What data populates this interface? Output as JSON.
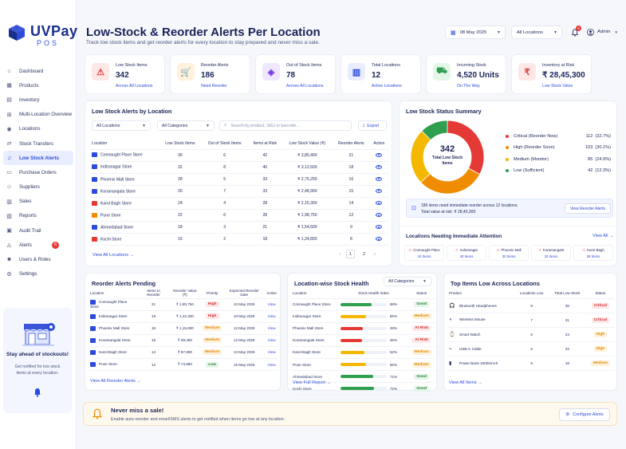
{
  "brand": {
    "name": "UVPay",
    "sub": "POS"
  },
  "nav": [
    {
      "label": "Dashboard",
      "icon": "dashboard-icon",
      "glyph": "⌂"
    },
    {
      "label": "Products",
      "icon": "products-icon",
      "glyph": "▦"
    },
    {
      "label": "Inventory",
      "icon": "inventory-icon",
      "glyph": "▤"
    },
    {
      "label": "Multi-Location Overview",
      "icon": "multi-location-icon",
      "glyph": "⊞"
    },
    {
      "label": "Locations",
      "icon": "location-pin-icon",
      "glyph": "◉"
    },
    {
      "label": "Stock Transfers",
      "icon": "transfer-icon",
      "glyph": "⇄"
    },
    {
      "label": "Low Stock Alerts",
      "icon": "bell-icon",
      "glyph": "♫"
    },
    {
      "label": "Purchase Orders",
      "icon": "purchase-orders-icon",
      "glyph": "▭"
    },
    {
      "label": "Suppliers",
      "icon": "suppliers-icon",
      "glyph": "☺"
    },
    {
      "label": "Sales",
      "icon": "sales-icon",
      "glyph": "▥"
    },
    {
      "label": "Reports",
      "icon": "reports-icon",
      "glyph": "▧"
    },
    {
      "label": "Audit Trail",
      "icon": "audit-icon",
      "glyph": "▣"
    },
    {
      "label": "Alerts",
      "icon": "alert-icon",
      "glyph": "◬",
      "badge": "6"
    },
    {
      "label": "Users & Roles",
      "icon": "users-icon",
      "glyph": "☻"
    },
    {
      "label": "Settings",
      "icon": "settings-icon",
      "glyph": "⚙"
    }
  ],
  "promo": {
    "title": "Stay ahead of stockouts!",
    "text": "Get notified for low stock items at every location."
  },
  "header": {
    "title": "Low-Stock & Reorder Alerts Per Location",
    "subtitle": "Track low stock items and get reorder alerts for every location to stay prepared and never miss a sale.",
    "date": "08 May 2025",
    "location": "All Locations",
    "notif_count": "6",
    "user": "Admin"
  },
  "stats": [
    {
      "label": "Low Stock Items",
      "value": "342",
      "sub": "Across All Locations",
      "color": "#e53935",
      "bg": "#fde7e7",
      "glyph": "⚠"
    },
    {
      "label": "Reorder Alerts",
      "value": "186",
      "sub": "Need Reorder",
      "color": "#f08c00",
      "bg": "#fff1db",
      "glyph": "🛒"
    },
    {
      "label": "Out of Stock Items",
      "value": "78",
      "sub": "Across All Locations",
      "color": "#7b3fe4",
      "bg": "#efe7ff",
      "glyph": "◈"
    },
    {
      "label": "Total Locations",
      "value": "12",
      "sub": "Active Locations",
      "color": "#2c4bdb",
      "bg": "#e8eeff",
      "glyph": "▥"
    },
    {
      "label": "Incoming Stock",
      "value": "4,520 Units",
      "sub": "On The Way",
      "color": "#2e9e4f",
      "bg": "#e3f6e8",
      "glyph": "⛟"
    },
    {
      "label": "Inventory at Risk",
      "value": "₹ 28,45,300",
      "sub": "Low Stock Value",
      "color": "#e53935",
      "bg": "#fde7e7",
      "glyph": "₹"
    }
  ],
  "low_stock": {
    "title": "Low Stock Alerts by Location",
    "filter_location": "All Locations",
    "filter_category": "All Categories",
    "search_placeholder": "Search by product, SKU or barcode...",
    "export": "Export",
    "columns": [
      "Location",
      "Low Stock Items",
      "Out of Stock Items",
      "Items at Risk",
      "Low Stock Value (₹)",
      "Reorder Alerts",
      "Action"
    ],
    "rows": [
      {
        "loc": "Connaught Place Store",
        "low": "36",
        "out": "6",
        "risk": "42",
        "value": "₹ 3,85,400",
        "reorder": "21",
        "color": "#2c4bdb"
      },
      {
        "loc": "Indiranagar Store",
        "low": "32",
        "out": "8",
        "risk": "40",
        "value": "₹ 3,12,600",
        "reorder": "18",
        "color": "#2c4bdb"
      },
      {
        "loc": "Phoenix Mall Store",
        "low": "28",
        "out": "5",
        "risk": "33",
        "value": "₹ 2,75,250",
        "reorder": "16",
        "color": "#2c4bdb"
      },
      {
        "loc": "Koramangala Store",
        "low": "26",
        "out": "7",
        "risk": "33",
        "value": "₹ 2,48,900",
        "reorder": "15",
        "color": "#2c4bdb"
      },
      {
        "loc": "Karol Bagh Store",
        "low": "24",
        "out": "4",
        "risk": "28",
        "value": "₹ 2,15,300",
        "reorder": "14",
        "color": "#e53935"
      },
      {
        "loc": "Pune Store",
        "low": "22",
        "out": "6",
        "risk": "28",
        "value": "₹ 1,98,750",
        "reorder": "12",
        "color": "#f08c00"
      },
      {
        "loc": "Ahmedabad Store",
        "low": "18",
        "out": "3",
        "risk": "21",
        "value": "₹ 1,54,600",
        "reorder": "9",
        "color": "#2c4bdb"
      },
      {
        "loc": "Kochi Store",
        "low": "16",
        "out": "2",
        "risk": "18",
        "value": "₹ 1,24,800",
        "reorder": "8",
        "color": "#e53935"
      }
    ],
    "view_all": "View All Locations",
    "pages": [
      "1",
      "2"
    ]
  },
  "summary": {
    "title": "Low Stock Status Summary",
    "total": "342",
    "total_label": "Total Low Stock Items",
    "legend": [
      {
        "label": "Critical (Reorder Now)",
        "count": "112",
        "pct": "(32.7%)",
        "color": "#e53935"
      },
      {
        "label": "High (Reorder Soon)",
        "count": "103",
        "pct": "(30.1%)",
        "color": "#f08c00"
      },
      {
        "label": "Medium (Monitor)",
        "count": "85",
        "pct": "(24.9%)",
        "color": "#f5b800"
      },
      {
        "label": "Low (Sufficient)",
        "count": "42",
        "pct": "(12.3%)",
        "color": "#2e9e4f"
      }
    ],
    "notice": "186 items need immediate reorder across 12 locations.",
    "notice_value": "Total value at risk: ₹ 28,45,300",
    "notice_btn": "View Reorder Alerts"
  },
  "chart_data": {
    "type": "pie",
    "categories": [
      "Critical (Reorder Now)",
      "High (Reorder Soon)",
      "Medium (Monitor)",
      "Low (Sufficient)"
    ],
    "values": [
      112,
      103,
      85,
      42
    ],
    "title": "Low Stock Status Summary",
    "colors": [
      "#e53935",
      "#f08c00",
      "#f5b800",
      "#2e9e4f"
    ],
    "legend": "right"
  },
  "attention": {
    "title": "Locations Needing Immediate Attention",
    "view_all": "View All",
    "items": [
      {
        "name": "Connaught Place",
        "count": "42 Items"
      },
      {
        "name": "Indiranagar",
        "count": "40 Items"
      },
      {
        "name": "Phoenix Mall",
        "count": "33 Items"
      },
      {
        "name": "Koramangala",
        "count": "33 Items"
      },
      {
        "name": "Karol Bagh",
        "count": "28 Items"
      }
    ]
  },
  "reorder": {
    "title": "Reorder Alerts Pending",
    "columns": [
      "Location",
      "Items to Reorder",
      "Reorder Value (₹)",
      "Priority",
      "Expected Reorder Date",
      "Action"
    ],
    "rows": [
      {
        "loc": "Connaught Place Store",
        "items": "21",
        "value": "₹ 1,85,750",
        "priority": "High",
        "pcls": "pill-high",
        "date": "10 May 2025",
        "action": "View"
      },
      {
        "loc": "Indiranagar Store",
        "items": "18",
        "value": "₹ 1,42,300",
        "priority": "High",
        "pcls": "pill-high",
        "date": "10 May 2025",
        "action": "View"
      },
      {
        "loc": "Phoenix Mall Store",
        "items": "16",
        "value": "₹ 1,15,600",
        "priority": "Medium",
        "pcls": "pill-med",
        "date": "12 May 2025",
        "action": "View"
      },
      {
        "loc": "Koramangala Store",
        "items": "15",
        "value": "₹ 98,450",
        "priority": "Medium",
        "pcls": "pill-med",
        "date": "12 May 2025",
        "action": "View"
      },
      {
        "loc": "Karol Bagh Store",
        "items": "14",
        "value": "₹ 87,900",
        "priority": "Medium",
        "pcls": "pill-med",
        "date": "13 May 2025",
        "action": "View"
      },
      {
        "loc": "Pune Store",
        "items": "12",
        "value": "₹ 74,850",
        "priority": "Low",
        "pcls": "pill-low",
        "date": "15 May 2025",
        "action": "View"
      }
    ],
    "view_all": "View All Reorder Alerts"
  },
  "health": {
    "title": "Location-wise Stock Health",
    "filter": "All Categories",
    "columns": [
      "Location",
      "Stock Health Index",
      "Status"
    ],
    "rows": [
      {
        "loc": "Connaught Place Store",
        "pct": "68%",
        "fill": 0.68,
        "color": "#2e9e4f",
        "status": "Good",
        "scls": "pill-good"
      },
      {
        "loc": "Indiranagar Store",
        "pct": "56%",
        "fill": 0.56,
        "color": "#f5b800",
        "status": "Medium",
        "scls": "pill-med"
      },
      {
        "loc": "Phoenix Mall Store",
        "pct": "48%",
        "fill": 0.48,
        "color": "#e53935",
        "status": "At Risk",
        "scls": "pill-risk"
      },
      {
        "loc": "Koramangala Store",
        "pct": "46%",
        "fill": 0.46,
        "color": "#e53935",
        "status": "At Risk",
        "scls": "pill-risk"
      },
      {
        "loc": "Karol Bagh Store",
        "pct": "52%",
        "fill": 0.52,
        "color": "#f5b800",
        "status": "Medium",
        "scls": "pill-med"
      },
      {
        "loc": "Pune Store",
        "pct": "56%",
        "fill": 0.56,
        "color": "#f5b800",
        "status": "Medium",
        "scls": "pill-med"
      },
      {
        "loc": "Ahmedabad Store",
        "pct": "71%",
        "fill": 0.71,
        "color": "#2e9e4f",
        "status": "Good",
        "scls": "pill-good"
      },
      {
        "loc": "Kochi Store",
        "pct": "72%",
        "fill": 0.72,
        "color": "#2e9e4f",
        "status": "Good",
        "scls": "pill-good"
      }
    ],
    "view_all": "View Full Report"
  },
  "top_items": {
    "title": "Top Items Low Across Locations",
    "columns": [
      "Product",
      "Locations Low",
      "Total Low Stock",
      "Status"
    ],
    "rows": [
      {
        "product": "Bluetooth Headphones",
        "locs": "8",
        "total": "36",
        "status": "Critical",
        "scls": "pill-crit",
        "icon": "headphones-icon",
        "glyph": "🎧"
      },
      {
        "product": "Wireless Mouse",
        "locs": "7",
        "total": "31",
        "status": "Critical",
        "scls": "pill-crit",
        "icon": "mouse-icon",
        "glyph": "◖"
      },
      {
        "product": "Smart Watch",
        "locs": "6",
        "total": "24",
        "status": "High",
        "scls": "pill-med",
        "icon": "watch-icon",
        "glyph": "⌚"
      },
      {
        "product": "USB-C Cable",
        "locs": "6",
        "total": "22",
        "status": "High",
        "scls": "pill-med",
        "icon": "cable-icon",
        "glyph": "⌁"
      },
      {
        "product": "Power Bank 10000mAh",
        "locs": "5",
        "total": "18",
        "status": "Medium",
        "scls": "pill-med",
        "icon": "power-bank-icon",
        "glyph": "▮"
      }
    ],
    "view_all": "View All Items"
  },
  "banner": {
    "title": "Never miss a sale!",
    "text": "Enable auto-reorder and email/SMS alerts to get notified when items go low at any location.",
    "button": "Configure Alerts"
  }
}
